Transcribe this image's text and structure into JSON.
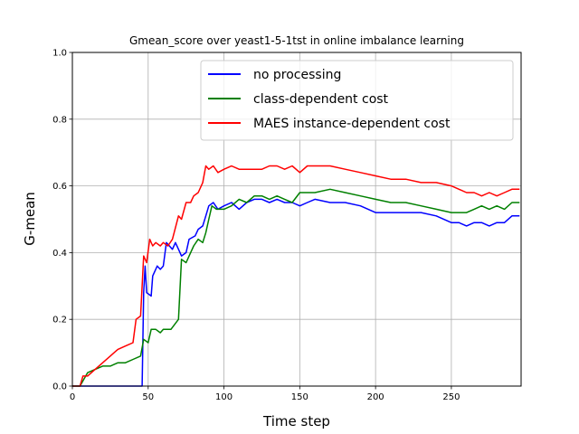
{
  "chart_data": {
    "type": "line",
    "title": "Gmean_score over yeast1-5-1tst in online imbalance learning",
    "xlabel": "Time step",
    "ylabel": "G-mean",
    "xlim": [
      0,
      296
    ],
    "ylim": [
      0.0,
      1.0
    ],
    "xticks": [
      "0",
      "50",
      "100",
      "150",
      "200",
      "250"
    ],
    "xtick_values": [
      0,
      50,
      100,
      150,
      200,
      250
    ],
    "yticks": [
      "0.0",
      "0.2",
      "0.4",
      "0.6",
      "0.8",
      "1.0"
    ],
    "ytick_values": [
      0.0,
      0.2,
      0.4,
      0.6,
      0.8,
      1.0
    ],
    "grid": true,
    "legend_position": "top-right",
    "series": [
      {
        "name": "no processing",
        "color": "#0000ff",
        "x": [
          0,
          46,
          47,
          48,
          49,
          52,
          53,
          56,
          58,
          60,
          62,
          66,
          68,
          70,
          72,
          75,
          77,
          81,
          83,
          86,
          88,
          90,
          93,
          96,
          100,
          105,
          110,
          115,
          120,
          125,
          130,
          135,
          140,
          145,
          150,
          155,
          160,
          170,
          180,
          190,
          200,
          210,
          220,
          230,
          240,
          250,
          255,
          260,
          265,
          270,
          275,
          280,
          285,
          290,
          295
        ],
        "y": [
          0.0,
          0.0,
          0.28,
          0.36,
          0.28,
          0.27,
          0.33,
          0.36,
          0.35,
          0.36,
          0.43,
          0.41,
          0.43,
          0.41,
          0.39,
          0.4,
          0.44,
          0.45,
          0.47,
          0.48,
          0.51,
          0.54,
          0.55,
          0.53,
          0.54,
          0.55,
          0.53,
          0.55,
          0.56,
          0.56,
          0.55,
          0.56,
          0.55,
          0.55,
          0.54,
          0.55,
          0.56,
          0.55,
          0.55,
          0.54,
          0.52,
          0.52,
          0.52,
          0.52,
          0.51,
          0.49,
          0.49,
          0.48,
          0.49,
          0.49,
          0.48,
          0.49,
          0.49,
          0.51,
          0.51
        ]
      },
      {
        "name": "class-dependent cost",
        "color": "#008000",
        "x": [
          0,
          5,
          10,
          15,
          20,
          25,
          30,
          35,
          40,
          45,
          47,
          50,
          52,
          55,
          58,
          60,
          65,
          70,
          72,
          75,
          78,
          80,
          83,
          86,
          88,
          90,
          92,
          95,
          100,
          105,
          110,
          115,
          120,
          125,
          130,
          135,
          140,
          145,
          150,
          155,
          160,
          170,
          180,
          190,
          200,
          210,
          220,
          230,
          240,
          250,
          260,
          265,
          270,
          275,
          280,
          285,
          290,
          295
        ],
        "y": [
          0.0,
          0.0,
          0.04,
          0.05,
          0.06,
          0.06,
          0.07,
          0.07,
          0.08,
          0.09,
          0.14,
          0.13,
          0.17,
          0.17,
          0.16,
          0.17,
          0.17,
          0.2,
          0.38,
          0.37,
          0.4,
          0.42,
          0.44,
          0.43,
          0.46,
          0.5,
          0.54,
          0.53,
          0.53,
          0.54,
          0.56,
          0.55,
          0.57,
          0.57,
          0.56,
          0.57,
          0.56,
          0.55,
          0.58,
          0.58,
          0.58,
          0.59,
          0.58,
          0.57,
          0.56,
          0.55,
          0.55,
          0.54,
          0.53,
          0.52,
          0.52,
          0.53,
          0.54,
          0.53,
          0.54,
          0.53,
          0.55,
          0.55
        ]
      },
      {
        "name": "MAES instance-dependent cost",
        "color": "#ff0000",
        "x": [
          0,
          5,
          7,
          10,
          15,
          20,
          25,
          30,
          35,
          40,
          42,
          45,
          47,
          49,
          51,
          53,
          55,
          58,
          60,
          63,
          66,
          70,
          72,
          75,
          78,
          80,
          83,
          86,
          88,
          90,
          93,
          96,
          100,
          105,
          110,
          115,
          120,
          125,
          130,
          135,
          140,
          145,
          150,
          155,
          160,
          170,
          180,
          190,
          200,
          210,
          220,
          230,
          240,
          250,
          260,
          265,
          270,
          275,
          280,
          285,
          290,
          295
        ],
        "y": [
          0.0,
          0.0,
          0.03,
          0.03,
          0.05,
          0.07,
          0.09,
          0.11,
          0.12,
          0.13,
          0.2,
          0.21,
          0.39,
          0.37,
          0.44,
          0.42,
          0.43,
          0.42,
          0.43,
          0.42,
          0.44,
          0.51,
          0.5,
          0.55,
          0.55,
          0.57,
          0.58,
          0.61,
          0.66,
          0.65,
          0.66,
          0.64,
          0.65,
          0.66,
          0.65,
          0.65,
          0.65,
          0.65,
          0.66,
          0.66,
          0.65,
          0.66,
          0.64,
          0.66,
          0.66,
          0.66,
          0.65,
          0.64,
          0.63,
          0.62,
          0.62,
          0.61,
          0.61,
          0.6,
          0.58,
          0.58,
          0.57,
          0.58,
          0.57,
          0.58,
          0.59,
          0.59
        ]
      }
    ]
  }
}
